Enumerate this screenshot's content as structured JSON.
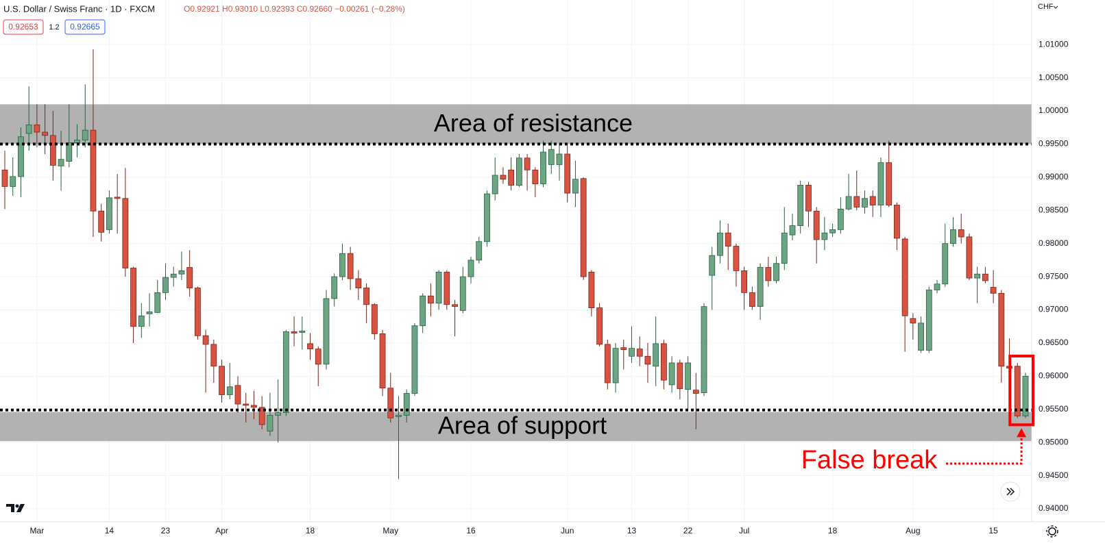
{
  "header": {
    "symbol": "U.S. Dollar / Swiss Franc · 1D · FXCM",
    "ohlc": "O0.92921 H0.93010 L0.92393 C0.92660 −0.00261 (−0.28%)",
    "bid": "0.92653",
    "spread": "1.2",
    "ask": "0.92665",
    "currency": "CHF"
  },
  "chart_data": {
    "type": "candlestick",
    "categories": [
      null,
      null,
      null,
      null,
      "Mar",
      null,
      null,
      null,
      null,
      null,
      null,
      null,
      null,
      "14",
      null,
      null,
      null,
      null,
      null,
      null,
      "23",
      null,
      null,
      null,
      null,
      null,
      null,
      "Apr",
      null,
      null,
      null,
      null,
      null,
      null,
      null,
      null,
      null,
      null,
      "18",
      null,
      null,
      null,
      null,
      null,
      null,
      null,
      null,
      null,
      "May",
      null,
      null,
      null,
      null,
      null,
      null,
      null,
      null,
      null,
      "16",
      null,
      null,
      null,
      null,
      null,
      null,
      null,
      null,
      null,
      null,
      null,
      "Jun",
      null,
      null,
      null,
      null,
      null,
      null,
      null,
      "13",
      null,
      null,
      null,
      null,
      null,
      null,
      "22",
      null,
      null,
      null,
      null,
      null,
      null,
      "Jul",
      null,
      null,
      null,
      null,
      null,
      null,
      null,
      null,
      null,
      null,
      "18",
      null,
      null,
      null,
      null,
      null,
      null,
      null,
      null,
      null,
      "Aug",
      null,
      null,
      null,
      null,
      null,
      null,
      null,
      null,
      null,
      "15",
      null,
      null,
      null,
      null
    ],
    "open": [
      0.9911,
      0.9886,
      0.9901,
      0.9966,
      0.9979,
      0.9968,
      0.9963,
      0.9917,
      0.9924,
      0.9952,
      0.9956,
      0.9971,
      0.9849,
      0.9821,
      0.987,
      0.9868,
      0.9763,
      0.9675,
      0.9694,
      0.9696,
      0.9726,
      0.9749,
      0.9754,
      0.9764,
      0.9733,
      0.9661,
      0.9648,
      0.9615,
      0.9572,
      0.9586,
      0.9558,
      0.9556,
      0.9553,
      0.9517,
      0.9541,
      0.9545,
      0.9667,
      0.9666,
      0.9649,
      0.9641,
      0.9618,
      0.9717,
      0.975,
      0.9785,
      0.9747,
      0.9733,
      0.9708,
      0.9664,
      0.9582,
      0.9539,
      0.9541,
      0.9574,
      0.9676,
      0.9721,
      0.971,
      0.9757,
      0.9708,
      0.9699,
      0.975,
      0.9775,
      0.9803,
      0.9875,
      0.9903,
      0.9911,
      0.9888,
      0.9929,
      0.9911,
      0.989,
      0.9919,
      0.9919,
      0.9935,
      0.9876,
      0.9898,
      0.9757,
      0.9703,
      0.9648,
      0.959,
      0.9643,
      0.963,
      0.9641,
      0.963,
      0.9615,
      0.9649,
      0.9587,
      0.962,
      0.958,
      0.9579,
      0.9575,
      0.9752,
      0.9782,
      0.9816,
      0.9796,
      0.9759,
      0.9726,
      0.9705,
      0.9764,
      0.9744,
      0.977,
      0.9813,
      0.9827,
      0.9888,
      0.9849,
      0.9806,
      0.9816,
      0.9821,
      0.9852,
      0.9871,
      0.9855,
      0.9871,
      0.9858,
      0.9922,
      0.9858,
      0.9807,
      0.9687,
      0.9639,
      0.9639,
      0.973,
      0.9739,
      0.98,
      0.9821,
      0.981,
      0.9748,
      0.9754,
      0.9734,
      0.9725,
      0.9615,
      0.9615,
      0.954
    ],
    "high": [
      0.994,
      0.993,
      0.9975,
      1.0037,
      1.001,
      1.001,
      1.0,
      0.997,
      1.001,
      0.998,
      1.004,
      1.0093,
      0.986,
      0.988,
      0.9905,
      0.9914,
      0.9765,
      0.971,
      0.9725,
      0.9745,
      0.977,
      0.9765,
      0.9788,
      0.979,
      0.9735,
      0.967,
      0.9655,
      0.9625,
      0.962,
      0.96,
      0.9575,
      0.9578,
      0.957,
      0.9575,
      0.9595,
      0.967,
      0.969,
      0.969,
      0.9665,
      0.9645,
      0.973,
      0.9755,
      0.98,
      0.9795,
      0.976,
      0.974,
      0.971,
      0.967,
      0.9605,
      0.957,
      0.958,
      0.968,
      0.9725,
      0.974,
      0.976,
      0.976,
      0.9715,
      0.9765,
      0.978,
      0.981,
      0.988,
      0.993,
      0.9915,
      0.993,
      0.9935,
      0.9935,
      0.9915,
      0.9955,
      0.9955,
      0.995,
      0.9948,
      0.9925,
      0.99,
      0.976,
      0.971,
      0.9655,
      0.965,
      0.9655,
      0.9675,
      0.966,
      0.965,
      0.969,
      0.9655,
      0.963,
      0.9625,
      0.963,
      0.9605,
      0.971,
      0.9795,
      0.9835,
      0.983,
      0.98,
      0.9765,
      0.9735,
      0.977,
      0.978,
      0.978,
      0.9855,
      0.9845,
      0.9895,
      0.9893,
      0.9855,
      0.984,
      0.983,
      0.987,
      0.9905,
      0.991,
      0.988,
      0.988,
      0.993,
      0.9955,
      0.9862,
      0.981,
      0.9695,
      0.969,
      0.9735,
      0.9745,
      0.983,
      0.984,
      0.9845,
      0.9815,
      0.9765,
      0.9765,
      0.976,
      0.973,
      0.9657,
      0.962,
      0.9605
    ],
    "low": [
      0.9852,
      0.9872,
      0.987,
      0.994,
      0.9945,
      0.9935,
      0.9895,
      0.988,
      0.9915,
      0.993,
      0.9945,
      0.981,
      0.9803,
      0.9815,
      0.9815,
      0.975,
      0.965,
      0.9658,
      0.9675,
      0.9695,
      0.9715,
      0.9735,
      0.9745,
      0.972,
      0.9655,
      0.9575,
      0.959,
      0.956,
      0.9565,
      0.9545,
      0.953,
      0.9535,
      0.952,
      0.951,
      0.95,
      0.954,
      0.9645,
      0.964,
      0.9625,
      0.9585,
      0.961,
      0.9705,
      0.9745,
      0.973,
      0.9715,
      0.968,
      0.9655,
      0.957,
      0.953,
      0.9445,
      0.953,
      0.957,
      0.9665,
      0.969,
      0.97,
      0.97,
      0.966,
      0.9695,
      0.974,
      0.977,
      0.9795,
      0.9865,
      0.989,
      0.988,
      0.9885,
      0.988,
      0.987,
      0.9885,
      0.9905,
      0.9895,
      0.9862,
      0.9855,
      0.9745,
      0.969,
      0.9645,
      0.958,
      0.9575,
      0.961,
      0.962,
      0.9615,
      0.959,
      0.9585,
      0.958,
      0.9575,
      0.9565,
      0.955,
      0.952,
      0.957,
      0.97,
      0.977,
      0.976,
      0.9735,
      0.97,
      0.97,
      0.9685,
      0.9735,
      0.974,
      0.976,
      0.9805,
      0.9815,
      0.9825,
      0.977,
      0.979,
      0.981,
      0.9815,
      0.985,
      0.985,
      0.9845,
      0.984,
      0.984,
      0.9855,
      0.979,
      0.9637,
      0.9655,
      0.9635,
      0.9635,
      0.9725,
      0.9735,
      0.9795,
      0.98,
      0.9745,
      0.971,
      0.974,
      0.971,
      0.959,
      0.96,
      0.9537,
      0.9537
    ],
    "close": [
      0.9886,
      0.9901,
      0.9961,
      0.9979,
      0.9968,
      0.9963,
      0.9918,
      0.9927,
      0.9952,
      0.9956,
      0.9971,
      0.9849,
      0.9817,
      0.9869,
      0.9868,
      0.9763,
      0.9675,
      0.9691,
      0.9697,
      0.9726,
      0.9749,
      0.9754,
      0.9759,
      0.9733,
      0.9661,
      0.9648,
      0.9615,
      0.9572,
      0.9584,
      0.9558,
      0.9556,
      0.9553,
      0.9527,
      0.9541,
      0.9545,
      0.9667,
      0.9665,
      0.9668,
      0.9641,
      0.9618,
      0.9717,
      0.975,
      0.9785,
      0.9747,
      0.9733,
      0.9708,
      0.9664,
      0.9582,
      0.9537,
      0.9541,
      0.9574,
      0.9676,
      0.9721,
      0.971,
      0.9757,
      0.9708,
      0.9705,
      0.975,
      0.9775,
      0.9803,
      0.9875,
      0.9903,
      0.9897,
      0.9888,
      0.9929,
      0.9911,
      0.989,
      0.9938,
      0.9942,
      0.9935,
      0.9876,
      0.9897,
      0.975,
      0.9703,
      0.9648,
      0.959,
      0.9642,
      0.964,
      0.9642,
      0.963,
      0.9618,
      0.9649,
      0.9594,
      0.962,
      0.9581,
      0.962,
      0.9574,
      0.9705,
      0.9782,
      0.9816,
      0.9796,
      0.9759,
      0.9726,
      0.9705,
      0.9764,
      0.9744,
      0.977,
      0.9816,
      0.9827,
      0.9888,
      0.9849,
      0.9806,
      0.9816,
      0.9821,
      0.9852,
      0.9871,
      0.9855,
      0.9868,
      0.9858,
      0.9922,
      0.9858,
      0.9808,
      0.9691,
      0.968,
      0.968,
      0.973,
      0.9739,
      0.98,
      0.9821,
      0.981,
      0.9748,
      0.9754,
      0.9744,
      0.9725,
      0.9615,
      0.9612,
      0.954,
      0.96
    ],
    "up_color": "#6ba583",
    "down_color": "#d75442",
    "ylim": [
      0.93804,
      1.01673
    ],
    "yticks": [
      {
        "value": 0.94,
        "label": "0.94000"
      },
      {
        "value": 0.945,
        "label": "0.94500"
      },
      {
        "value": 0.95,
        "label": "0.95000"
      },
      {
        "value": 0.955,
        "label": "0.95500"
      },
      {
        "value": 0.96,
        "label": "0.96000"
      },
      {
        "value": 0.965,
        "label": "0.96500"
      },
      {
        "value": 0.97,
        "label": "0.97000"
      },
      {
        "value": 0.975,
        "label": "0.97500"
      },
      {
        "value": 0.98,
        "label": "0.98000"
      },
      {
        "value": 0.985,
        "label": "0.98500"
      },
      {
        "value": 0.99,
        "label": "0.99000"
      },
      {
        "value": 0.995,
        "label": "0.99500"
      },
      {
        "value": 1.0,
        "label": "1.00000"
      },
      {
        "value": 1.005,
        "label": "1.00500"
      },
      {
        "value": 1.01,
        "label": "1.01000"
      }
    ],
    "grid": true,
    "zones": [
      {
        "label": "Area of resistance",
        "from": 0.995,
        "to": 1.001
      },
      {
        "label": "Area of support",
        "from": 0.9502,
        "to": 0.9546
      }
    ],
    "levels": [
      0.995,
      0.9549
    ],
    "annotation": "False break"
  }
}
